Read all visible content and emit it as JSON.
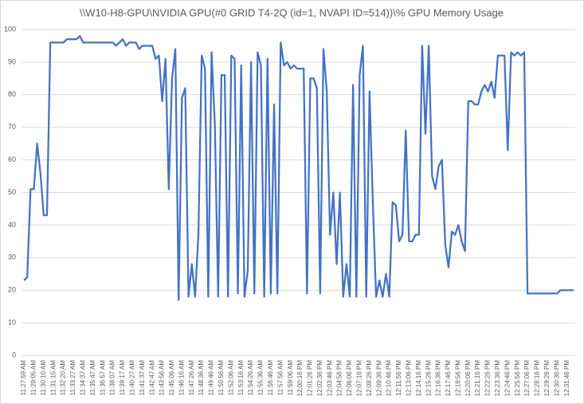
{
  "chart_data": {
    "type": "line",
    "title": "\\\\W10-H8-GPU\\NVIDIA GPU(#0 GRID T4-2Q (id=1, NVAPI ID=514))\\% GPU Memory Usage",
    "categories": [
      "11:27:59 AM",
      null,
      null,
      "11:29:05 AM",
      null,
      null,
      "11:30:10 AM",
      null,
      null,
      "11:31:15 AM",
      null,
      null,
      "11:32:20 AM",
      null,
      null,
      "11:33:27 AM",
      null,
      null,
      "11:34:37 AM",
      null,
      null,
      "11:35:47 AM",
      null,
      null,
      "11:36:57 AM",
      null,
      null,
      "11:38:07 AM",
      null,
      null,
      "11:39:17 AM",
      null,
      null,
      "11:40:27 AM",
      null,
      null,
      "11:41:37 AM",
      null,
      null,
      "11:42:47 AM",
      null,
      null,
      "11:43:56 AM",
      null,
      null,
      "11:45:06 AM",
      null,
      null,
      "11:46:16 AM",
      null,
      null,
      "11:47:26 AM",
      null,
      null,
      "11:48:36 AM",
      null,
      null,
      "11:49:46 AM",
      null,
      null,
      "11:50:56 AM",
      null,
      null,
      "11:52:06 AM",
      null,
      null,
      "11:53:16 AM",
      null,
      null,
      "11:54:26 AM",
      null,
      null,
      "11:55:36 AM",
      null,
      null,
      "11:56:46 AM",
      null,
      null,
      "11:57:56 AM",
      null,
      null,
      "11:59:06 AM",
      null,
      null,
      "12:00:16 PM",
      null,
      null,
      "12:01:26 PM",
      null,
      null,
      "12:02:36 PM",
      null,
      null,
      "12:03:46 PM",
      null,
      null,
      "12:04:56 PM",
      null,
      null,
      "12:06:06 PM",
      null,
      null,
      "12:07:16 PM",
      null,
      null,
      "12:08:26 PM",
      null,
      null,
      "12:09:36 PM",
      null,
      null,
      "12:10:46 PM",
      null,
      null,
      "12:11:56 PM",
      null,
      null,
      "12:13:06 PM",
      null,
      null,
      "12:14:16 PM",
      null,
      null,
      "12:15:26 PM",
      null,
      null,
      "12:16:36 PM",
      null,
      null,
      "12:17:46 PM",
      null,
      null,
      "12:18:56 PM",
      null,
      null,
      "12:20:06 PM",
      null,
      null,
      "12:21:16 PM",
      null,
      null,
      "12:22:26 PM",
      null,
      null,
      "12:23:36 PM",
      null,
      null,
      "12:24:46 PM",
      null,
      null,
      "12:25:56 PM",
      null,
      null,
      "12:27:06 PM",
      null,
      null,
      "12:28:16 PM",
      null,
      null,
      "12:29:26 PM",
      null,
      null,
      "12:30:36 PM",
      null,
      null,
      "12:31:46 PM",
      null,
      null
    ],
    "values": [
      23,
      24,
      51,
      51,
      65,
      56,
      43,
      43,
      96,
      96,
      96,
      96,
      96,
      97,
      97,
      97,
      97,
      98,
      96,
      96,
      96,
      96,
      96,
      96,
      96,
      96,
      96,
      96,
      95,
      96,
      97,
      95,
      96,
      96,
      96,
      94,
      95,
      95,
      95,
      95,
      91,
      92,
      78,
      91,
      51,
      85,
      94,
      17,
      79,
      82,
      18,
      28,
      18,
      37,
      92,
      88,
      18,
      93,
      71,
      18,
      86,
      86,
      18,
      92,
      91,
      19,
      89,
      18,
      26,
      90,
      19,
      93,
      89,
      18,
      91,
      19,
      77,
      19,
      96,
      89,
      90,
      88,
      89,
      88,
      88,
      88,
      19,
      85,
      85,
      82,
      19,
      94,
      81,
      37,
      50,
      28,
      50,
      18,
      28,
      18,
      83,
      18,
      86,
      95,
      18,
      81,
      47,
      18,
      23,
      18,
      25,
      18,
      47,
      46,
      35,
      37,
      69,
      35,
      35,
      37,
      37,
      95,
      68,
      95,
      55,
      51,
      58,
      60,
      34,
      27,
      38,
      37,
      40,
      35,
      32,
      78,
      78,
      77,
      77,
      81,
      83,
      81,
      84,
      79,
      92,
      92,
      92,
      63,
      93,
      92,
      93,
      92,
      93,
      19,
      19,
      19,
      19,
      19,
      19,
      19,
      19,
      19,
      19,
      20,
      20,
      20,
      20,
      20
    ],
    "color": "#4472c4",
    "ylim": [
      0,
      100
    ],
    "yticks": [
      0,
      10,
      20,
      30,
      40,
      50,
      60,
      70,
      80,
      90,
      100
    ],
    "grid": true
  }
}
